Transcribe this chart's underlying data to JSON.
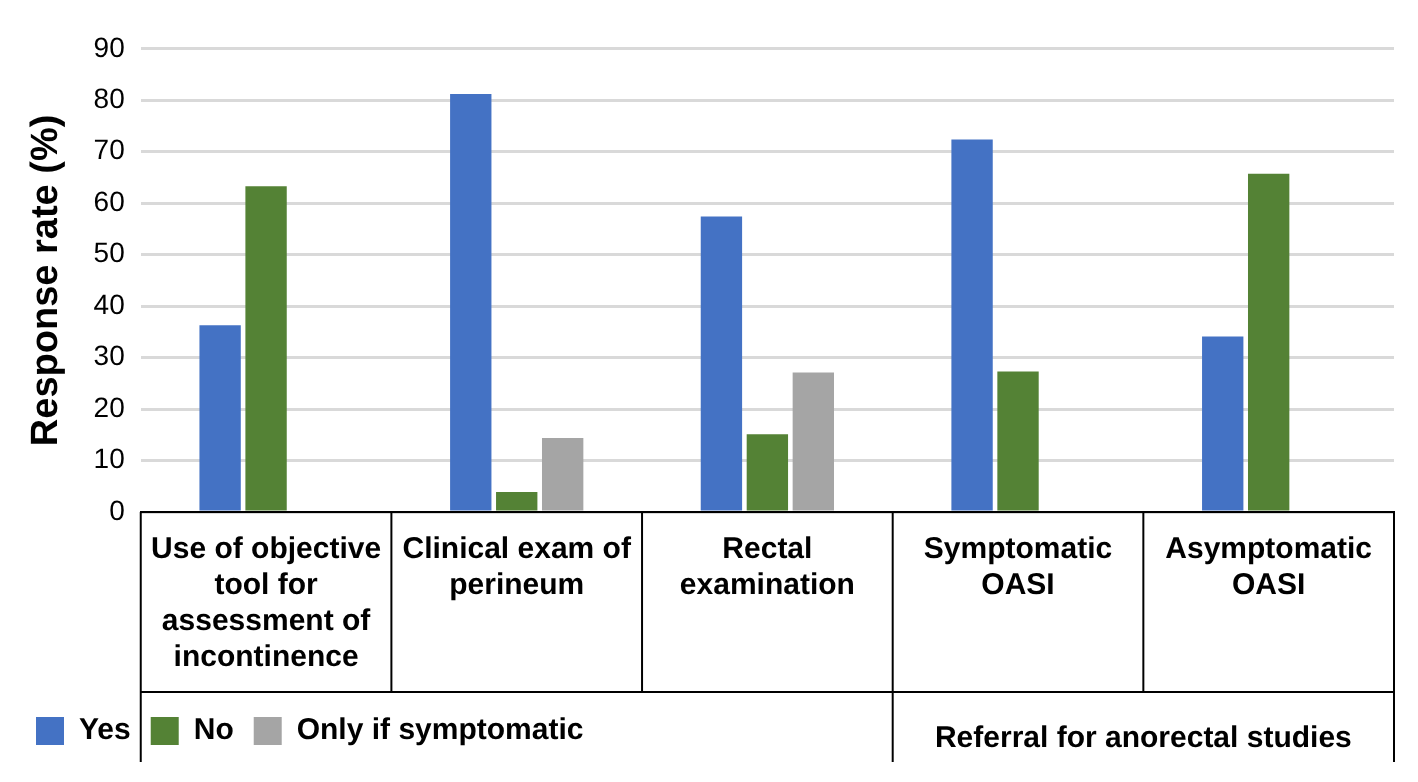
{
  "chart_data": {
    "type": "bar",
    "ylabel": "Response rate (%)",
    "categories": [
      "Use of objective tool for assessment of incontinence",
      "Clinical exam of perineum",
      "Rectal examination",
      "Symptomatic OASI",
      "Asymptomatic OASI"
    ],
    "series": [
      {
        "name": "Yes",
        "color": "#4472c4",
        "values": [
          36.3,
          81.2,
          57.4,
          72.4,
          34.1
        ]
      },
      {
        "name": "No",
        "color": "#548235",
        "values": [
          63.3,
          3.9,
          15.1,
          27.3,
          65.7
        ]
      },
      {
        "name": "Only if symptomatic",
        "color": "#a5a5a5",
        "values": [
          null,
          14.4,
          27.1,
          null,
          null
        ]
      }
    ],
    "ylim": [
      0,
      90
    ],
    "yticks": [
      0,
      10,
      20,
      30,
      40,
      50,
      60,
      70,
      80,
      90
    ],
    "grid": "y",
    "legend": "bottom",
    "annotations": [
      "Referral for anorectal studies"
    ]
  }
}
